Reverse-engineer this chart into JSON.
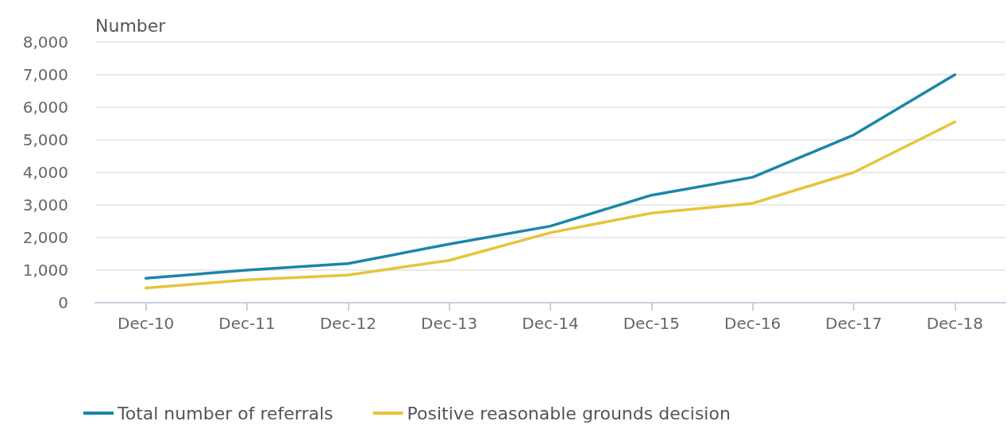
{
  "chart_data": {
    "type": "line",
    "ylabel": "Number",
    "categories": [
      "Dec-10",
      "Dec-11",
      "Dec-12",
      "Dec-13",
      "Dec-14",
      "Dec-15",
      "Dec-16",
      "Dec-17",
      "Dec-18"
    ],
    "series": [
      {
        "name": "Total number of referrals",
        "color": "#1a86a8",
        "values": [
          750,
          1000,
          1200,
          1800,
          2350,
          3300,
          3850,
          5150,
          7000
        ]
      },
      {
        "name": "Positive reasonable grounds decision",
        "color": "#e6c43a",
        "values": [
          450,
          700,
          850,
          1300,
          2150,
          2750,
          3050,
          4000,
          5550
        ]
      }
    ],
    "ylim": [
      0,
      8000
    ],
    "yticks": [
      0,
      {
        "value": 1000,
        "label": "1,000"
      },
      {
        "value": 2000,
        "label": "2,000"
      },
      {
        "value": 3000,
        "label": "3,000"
      },
      {
        "value": 4000,
        "label": "4,000"
      },
      {
        "value": 5000,
        "label": "5,000"
      },
      {
        "value": 6000,
        "label": "6,000"
      },
      {
        "value": 7000,
        "label": "7,000"
      },
      {
        "value": 8000,
        "label": "8,000"
      }
    ],
    "grid": "y",
    "legend": "bottom",
    "marker": "none",
    "line_style": "solid"
  }
}
